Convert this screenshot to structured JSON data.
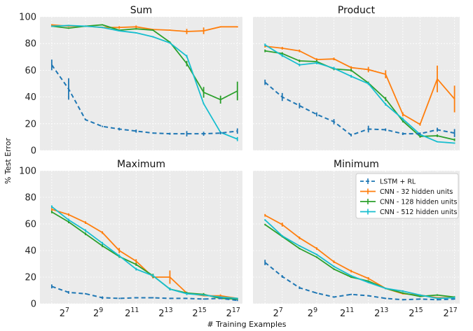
{
  "chart_data": {
    "type": "line",
    "xlabel": "# Training Examples",
    "ylabel": "% Test Error",
    "ylim": [
      0,
      100
    ],
    "xlim_log2": [
      5.3,
      17.3
    ],
    "xticks": [
      {
        "exp": 7,
        "base": "2",
        "sup": "7"
      },
      {
        "exp": 9,
        "base": "2",
        "sup": "9"
      },
      {
        "exp": 11,
        "base": "2",
        "sup": "11"
      },
      {
        "exp": 13,
        "base": "2",
        "sup": "13"
      },
      {
        "exp": 15,
        "base": "2",
        "sup": "15"
      },
      {
        "exp": 17,
        "base": "2",
        "sup": "17"
      }
    ],
    "yticks": [
      "0",
      "20",
      "40",
      "60",
      "80",
      "100"
    ],
    "grid": true,
    "legend_position": "top-right of Minimum panel",
    "series_styles": [
      {
        "name": "LSTM + RL",
        "color": "#1f77b4",
        "dashed": true
      },
      {
        "name": "CNN - 32 hidden units",
        "color": "#ff7f0e",
        "dashed": false
      },
      {
        "name": "CNN - 128 hidden units",
        "color": "#2ca02c",
        "dashed": false
      },
      {
        "name": "CNN - 512 hidden units",
        "color": "#17becf",
        "dashed": false
      }
    ],
    "panels": [
      {
        "title": "Sum",
        "series": [
          {
            "name": "LSTM + RL",
            "x_log2": [
              6,
              7,
              8,
              9,
              10,
              11,
              12,
              13,
              14,
              15,
              16,
              17
            ],
            "y": [
              64,
              46,
              23,
              18,
              16,
              14.5,
              13,
              12.5,
              12.5,
              12.5,
              13,
              14.5
            ],
            "err": [
              4,
              8,
              0.5,
              0.5,
              1,
              1.2,
              0.5,
              0.8,
              2,
              1.5,
              1,
              2
            ]
          },
          {
            "name": "CNN - 32 hidden units",
            "x_log2": [
              6,
              7,
              8,
              9,
              10,
              11,
              12,
              13,
              14,
              15,
              16,
              17
            ],
            "y": [
              94,
              93,
              93,
              92,
              92,
              92.5,
              90.5,
              90,
              89,
              89.5,
              92.5,
              92.5
            ],
            "err": [
              0.5,
              0.5,
              0.5,
              0.5,
              1,
              1,
              0.5,
              0.5,
              2,
              2.5,
              0.5,
              0.5
            ]
          },
          {
            "name": "CNN - 128 hidden units",
            "x_log2": [
              6,
              7,
              8,
              9,
              10,
              11,
              12,
              13,
              14,
              15,
              16,
              17
            ],
            "y": [
              93,
              91.5,
              93,
              94,
              90,
              91,
              90,
              81,
              65,
              43.5,
              38,
              44.5
            ],
            "err": [
              0.5,
              0.5,
              0.5,
              0.5,
              0.5,
              0.5,
              0.5,
              0.5,
              2,
              4,
              3,
              7
            ]
          },
          {
            "name": "CNN - 512 hidden units",
            "x_log2": [
              6,
              7,
              8,
              9,
              10,
              11,
              12,
              13,
              14,
              15,
              16,
              17
            ],
            "y": [
              93,
              93.5,
              93,
              92,
              89.5,
              88,
              85,
              80.5,
              70.5,
              35,
              13.5,
              8.5
            ],
            "err": [
              0.5,
              0.5,
              0.5,
              0.5,
              0.5,
              0.5,
              0.5,
              0.5,
              1,
              0.5,
              0.5,
              1.5
            ]
          }
        ]
      },
      {
        "title": "Product",
        "series": [
          {
            "name": "LSTM + RL",
            "x_log2": [
              6,
              7,
              8,
              9,
              10,
              11,
              12,
              13,
              14,
              15,
              16,
              17
            ],
            "y": [
              51,
              40,
              33.5,
              27,
              21.5,
              11.5,
              16,
              15.5,
              12.5,
              12.5,
              15.5,
              13
            ],
            "err": [
              2,
              3,
              2,
              1.5,
              2,
              1,
              2.5,
              1,
              1,
              1,
              1.5,
              3
            ]
          },
          {
            "name": "CNN - 32 hidden units",
            "x_log2": [
              6,
              7,
              8,
              9,
              10,
              11,
              12,
              13,
              14,
              15,
              16,
              17
            ],
            "y": [
              78,
              76.5,
              74.5,
              68,
              68.5,
              62,
              60.5,
              57,
              27,
              19.5,
              53.5,
              38.5
            ],
            "err": [
              1,
              1,
              1,
              1,
              1,
              1,
              2,
              3,
              1.5,
              1,
              10,
              10
            ]
          },
          {
            "name": "CNN - 128 hidden units",
            "x_log2": [
              6,
              7,
              8,
              9,
              10,
              11,
              12,
              13,
              14,
              15,
              16,
              17
            ],
            "y": [
              74.5,
              72.5,
              67,
              66.5,
              61,
              60,
              50.5,
              38.5,
              22,
              10.5,
              11,
              8
            ],
            "err": [
              1,
              1,
              1,
              1,
              1,
              1,
              1,
              1.5,
              1,
              1,
              1,
              1
            ]
          },
          {
            "name": "CNN - 512 hidden units",
            "x_log2": [
              6,
              7,
              8,
              9,
              10,
              11,
              12,
              13,
              14,
              15,
              16,
              17
            ],
            "y": [
              79,
              71,
              64,
              65.5,
              61.5,
              55.5,
              50,
              34.5,
              23.5,
              12,
              6.5,
              5.5
            ],
            "err": [
              1,
              1,
              1,
              1,
              1,
              1,
              1,
              1,
              1,
              1,
              0.5,
              0.5
            ]
          }
        ]
      },
      {
        "title": "Maximum",
        "series": [
          {
            "name": "LSTM + RL",
            "x_log2": [
              6,
              7,
              8,
              9,
              10,
              11,
              12,
              13,
              14,
              15,
              16,
              17
            ],
            "y": [
              13,
              8.5,
              7.5,
              4.5,
              4,
              4.5,
              4.5,
              4,
              4,
              3.5,
              4,
              2.5
            ],
            "err": [
              1.5,
              1,
              0.5,
              1,
              0.5,
              0.5,
              0.5,
              0.5,
              0.5,
              0.5,
              0.5,
              0.5
            ]
          },
          {
            "name": "CNN - 32 hidden units",
            "x_log2": [
              6,
              7,
              8,
              9,
              10,
              11,
              12,
              13,
              14,
              15,
              16,
              17
            ],
            "y": [
              71,
              67,
              61,
              53.5,
              40,
              32,
              20,
              20,
              8,
              6,
              6,
              4
            ],
            "err": [
              1,
              1,
              1,
              1,
              2,
              1.5,
              1,
              5,
              1,
              0.5,
              1,
              0.5
            ]
          },
          {
            "name": "CNN - 128 hidden units",
            "x_log2": [
              6,
              7,
              8,
              9,
              10,
              11,
              12,
              13,
              14,
              15,
              16,
              17
            ],
            "y": [
              69,
              61.5,
              52.5,
              43.5,
              35.5,
              29.5,
              21,
              11,
              8,
              7,
              4,
              3.5
            ],
            "err": [
              1,
              1,
              1,
              1,
              1,
              1,
              1.5,
              1,
              1,
              1,
              0.5,
              0.5
            ]
          },
          {
            "name": "CNN - 512 hidden units",
            "x_log2": [
              6,
              7,
              8,
              9,
              10,
              11,
              12,
              13,
              14,
              15,
              16,
              17
            ],
            "y": [
              73,
              63,
              55,
              45.5,
              36,
              26,
              21,
              11,
              7.5,
              6.5,
              5,
              4
            ],
            "err": [
              1,
              1,
              1,
              1,
              1,
              1,
              1,
              1,
              1,
              0.5,
              0.5,
              0.5
            ]
          }
        ]
      },
      {
        "title": "Minimum",
        "series": [
          {
            "name": "LSTM + RL",
            "x_log2": [
              6,
              7,
              8,
              9,
              10,
              11,
              12,
              13,
              14,
              15,
              16,
              17
            ],
            "y": [
              31,
              20.5,
              12,
              8,
              5,
              7,
              6,
              4,
              3,
              3.5,
              3,
              3.5
            ],
            "err": [
              2,
              1,
              1,
              0.5,
              0.5,
              0.5,
              0.5,
              0.5,
              0.5,
              0.5,
              0.5,
              0.5
            ]
          },
          {
            "name": "CNN - 32 hidden units",
            "x_log2": [
              6,
              7,
              8,
              9,
              10,
              11,
              12,
              13,
              14,
              15,
              16,
              17
            ],
            "y": [
              66.5,
              59.5,
              49.5,
              41.5,
              31.5,
              24.5,
              19,
              11.5,
              7.5,
              6.5,
              4.5,
              4.5
            ],
            "err": [
              1,
              1.5,
              1,
              1,
              1,
              1,
              1,
              0.5,
              0.5,
              0.5,
              0.5,
              0.5
            ]
          },
          {
            "name": "CNN - 128 hidden units",
            "x_log2": [
              6,
              7,
              8,
              9,
              10,
              11,
              12,
              13,
              14,
              15,
              16,
              17
            ],
            "y": [
              59.5,
              50.5,
              41.5,
              35,
              26,
              20,
              17,
              11.5,
              8,
              5.5,
              6.5,
              5
            ]
          },
          {
            "name": "CNN - 512 hidden units",
            "x_log2": [
              6,
              7,
              8,
              9,
              10,
              11,
              12,
              13,
              14,
              15,
              16,
              17
            ],
            "y": [
              63,
              51,
              43.5,
              37,
              28,
              21,
              16,
              11.5,
              9.5,
              6.5,
              4,
              4.5
            ]
          }
        ]
      }
    ]
  }
}
